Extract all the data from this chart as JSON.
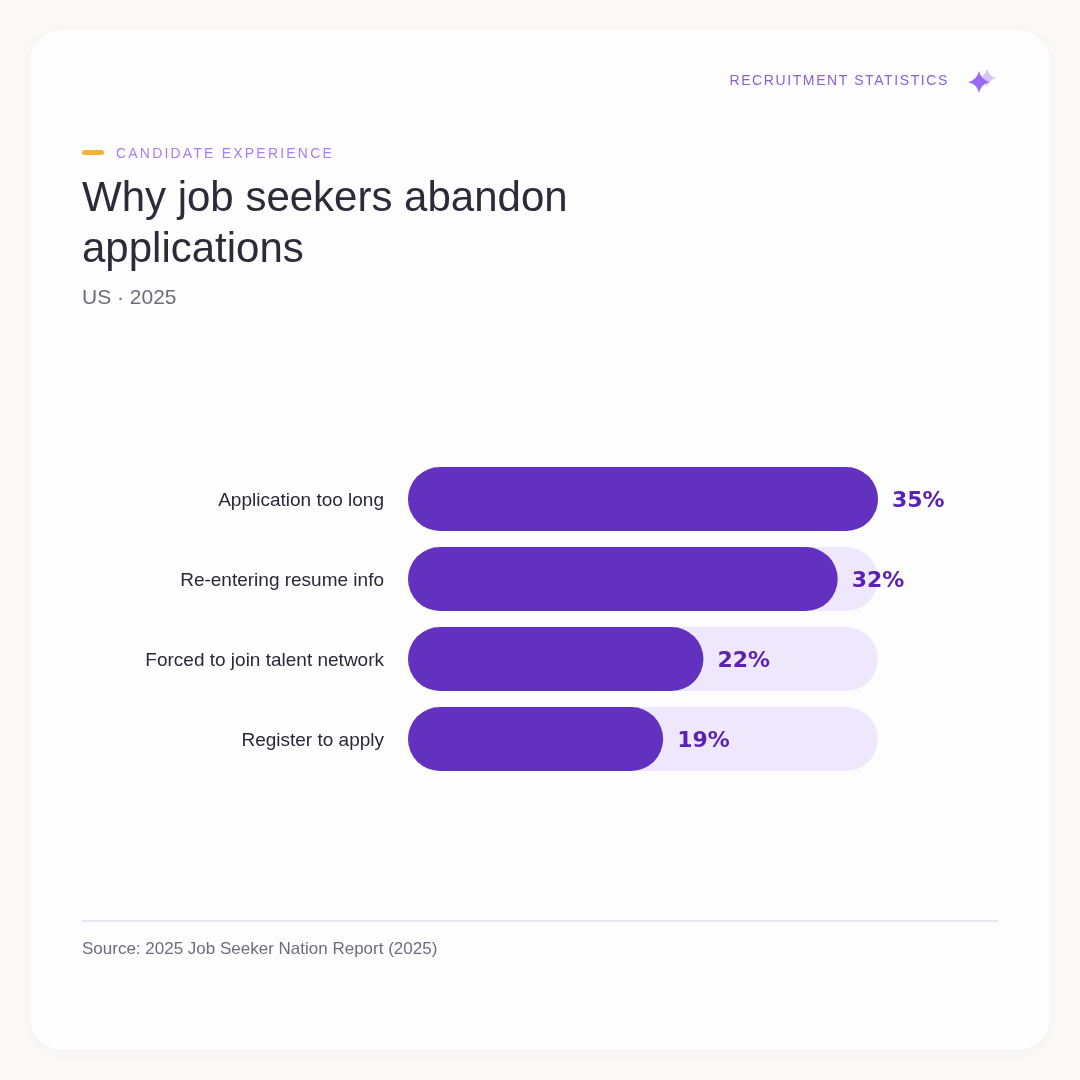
{
  "chart_data": {
    "type": "bar",
    "orientation": "horizontal",
    "title": "Why job seekers abandon applications",
    "subtitle": "US · 2025",
    "annotations": [
      "CANDIDATE EXPERIENCE",
      "RECRUITMENT STATISTICS",
      "Source: 2025 Job Seeker Nation Report (2025)"
    ],
    "categories": [
      "Application too long",
      "Re-entering resume info",
      "Forced to join talent network",
      "Register to apply"
    ],
    "values": [
      35,
      32,
      22,
      19
    ],
    "value_labels": [
      "35%",
      "32%",
      "22%",
      "19%"
    ],
    "color": "#6331bf",
    "tick_labels": "y"
  }
}
